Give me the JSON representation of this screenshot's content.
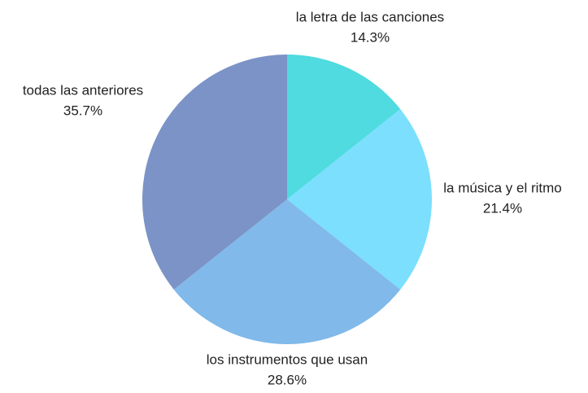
{
  "chart_data": {
    "type": "pie",
    "categories": [
      "la letra de las canciones",
      "la música y el ritmo",
      "los instrumentos que usan",
      "todas las anteriores"
    ],
    "values": [
      14.3,
      21.4,
      28.6,
      35.7
    ],
    "value_labels": [
      "14.3%",
      "21.4%",
      "28.6%",
      "35.7%"
    ],
    "colors": [
      "#4fdbe0",
      "#7bdffd",
      "#80b9ea",
      "#7b93c6"
    ]
  }
}
